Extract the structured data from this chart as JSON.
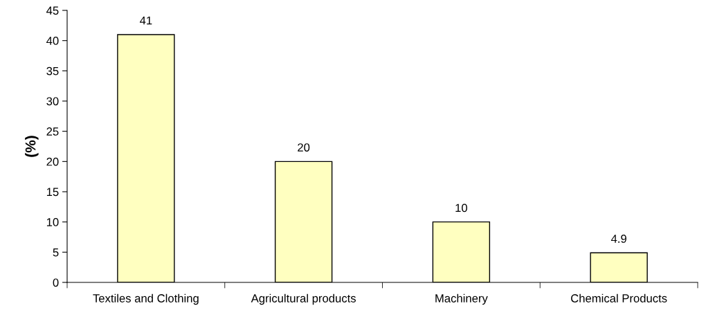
{
  "chart_data": {
    "type": "bar",
    "ylabel": "(%)",
    "categories": [
      "Textiles and Clothing",
      "Agricultural products",
      "Machinery",
      "Chemical Products"
    ],
    "values": [
      41,
      20,
      10,
      4.9
    ],
    "color": "#ffffc0",
    "ylim": [
      0,
      45
    ],
    "yticks": [
      0,
      5,
      10,
      15,
      20,
      25,
      30,
      35,
      40,
      45
    ],
    "data_labels": true,
    "grid": false,
    "legend": false
  }
}
